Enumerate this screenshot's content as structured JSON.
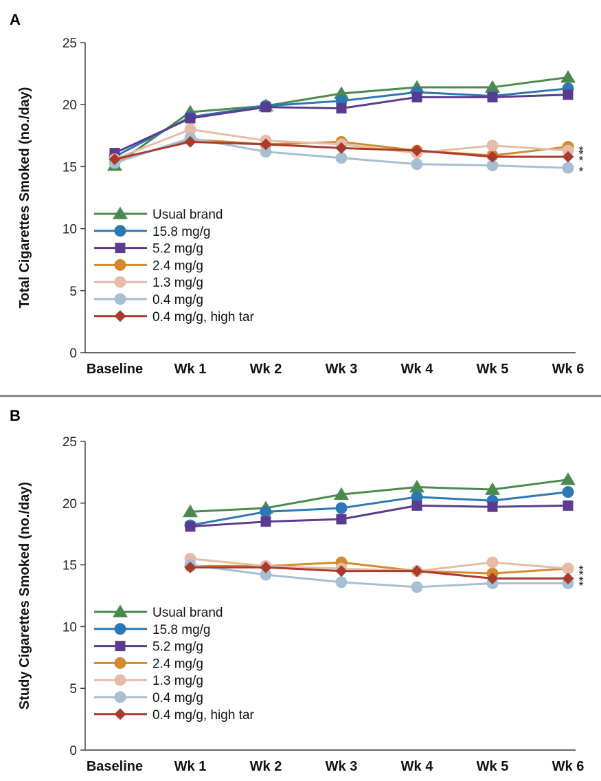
{
  "chart_data": [
    {
      "type": "line",
      "panel": "A",
      "ylabel": "Total Cigarettes Smoked (no./day)",
      "xlabel": "",
      "categories": [
        "Baseline",
        "Wk 1",
        "Wk 2",
        "Wk 3",
        "Wk 4",
        "Wk 5",
        "Wk 6"
      ],
      "ylim": [
        0,
        25
      ],
      "yticks": [
        "0",
        "5",
        "10",
        "15",
        "20",
        "25"
      ],
      "grid": false,
      "legend": "bottom-left",
      "series": [
        {
          "name": "Usual brand",
          "color": "#4a8a4f",
          "marker": "triangle",
          "values": [
            15.1,
            19.4,
            19.9,
            20.9,
            21.4,
            21.4,
            22.2
          ]
        },
        {
          "name": "15.8 mg/g",
          "color": "#2b78b4",
          "marker": "circle",
          "values": [
            15.8,
            19.0,
            19.9,
            20.3,
            21.0,
            20.7,
            21.3
          ]
        },
        {
          "name": "5.2 mg/g",
          "color": "#5b3b8f",
          "marker": "square",
          "values": [
            16.1,
            18.9,
            19.8,
            19.7,
            20.6,
            20.6,
            20.8
          ]
        },
        {
          "name": "2.4 mg/g",
          "color": "#d4892c",
          "marker": "circle",
          "values": [
            15.4,
            17.2,
            16.8,
            17.0,
            16.3,
            15.9,
            16.6
          ]
        },
        {
          "name": "1.3 mg/g",
          "color": "#e6bca8",
          "marker": "circle",
          "values": [
            15.6,
            18.0,
            17.1,
            16.8,
            16.1,
            16.7,
            16.3
          ]
        },
        {
          "name": "0.4 mg/g",
          "color": "#a6bfd3",
          "marker": "circle",
          "values": [
            15.3,
            17.3,
            16.2,
            15.7,
            15.2,
            15.1,
            14.9
          ]
        },
        {
          "name": "0.4 mg/g, high tar",
          "color": "#a93a2e",
          "marker": "diamond",
          "values": [
            15.6,
            17.0,
            16.8,
            16.5,
            16.3,
            15.8,
            15.8
          ]
        }
      ],
      "annotations": [
        {
          "text": "*",
          "y": 16.6
        },
        {
          "text": "*",
          "y": 16.3
        },
        {
          "text": "*",
          "y": 15.8
        },
        {
          "text": "*",
          "y": 14.9
        }
      ]
    },
    {
      "type": "line",
      "panel": "B",
      "ylabel": "Study Cigarettes Smoked (no./day)",
      "xlabel": "",
      "categories": [
        "Baseline",
        "Wk 1",
        "Wk 2",
        "Wk 3",
        "Wk 4",
        "Wk 5",
        "Wk 6"
      ],
      "ylim": [
        0,
        25
      ],
      "yticks": [
        "0",
        "5",
        "10",
        "15",
        "20",
        "25"
      ],
      "grid": false,
      "legend": "bottom-left",
      "series": [
        {
          "name": "Usual brand",
          "color": "#4a8a4f",
          "marker": "triangle",
          "values": [
            null,
            19.3,
            19.6,
            20.7,
            21.3,
            21.1,
            21.9
          ]
        },
        {
          "name": "15.8 mg/g",
          "color": "#2b78b4",
          "marker": "circle",
          "values": [
            null,
            18.2,
            19.3,
            19.6,
            20.5,
            20.2,
            20.9
          ]
        },
        {
          "name": "5.2 mg/g",
          "color": "#5b3b8f",
          "marker": "square",
          "values": [
            null,
            18.1,
            18.5,
            18.7,
            19.8,
            19.7,
            19.8
          ]
        },
        {
          "name": "2.4 mg/g",
          "color": "#d4892c",
          "marker": "circle",
          "values": [
            null,
            14.9,
            14.9,
            15.2,
            14.5,
            14.3,
            14.7
          ]
        },
        {
          "name": "1.3 mg/g",
          "color": "#e6bca8",
          "marker": "circle",
          "values": [
            null,
            15.5,
            14.9,
            14.7,
            14.5,
            15.2,
            14.7
          ]
        },
        {
          "name": "0.4 mg/g",
          "color": "#a6bfd3",
          "marker": "circle",
          "values": [
            null,
            15.0,
            14.2,
            13.6,
            13.2,
            13.5,
            13.5
          ]
        },
        {
          "name": "0.4 mg/g, high tar",
          "color": "#a93a2e",
          "marker": "diamond",
          "values": [
            null,
            14.8,
            14.8,
            14.5,
            14.5,
            13.9,
            13.9
          ]
        }
      ],
      "annotations": [
        {
          "text": "*",
          "y": 14.9
        },
        {
          "text": "*",
          "y": 14.5
        },
        {
          "text": "*",
          "y": 14.0
        },
        {
          "text": "*",
          "y": 13.6
        }
      ]
    }
  ]
}
